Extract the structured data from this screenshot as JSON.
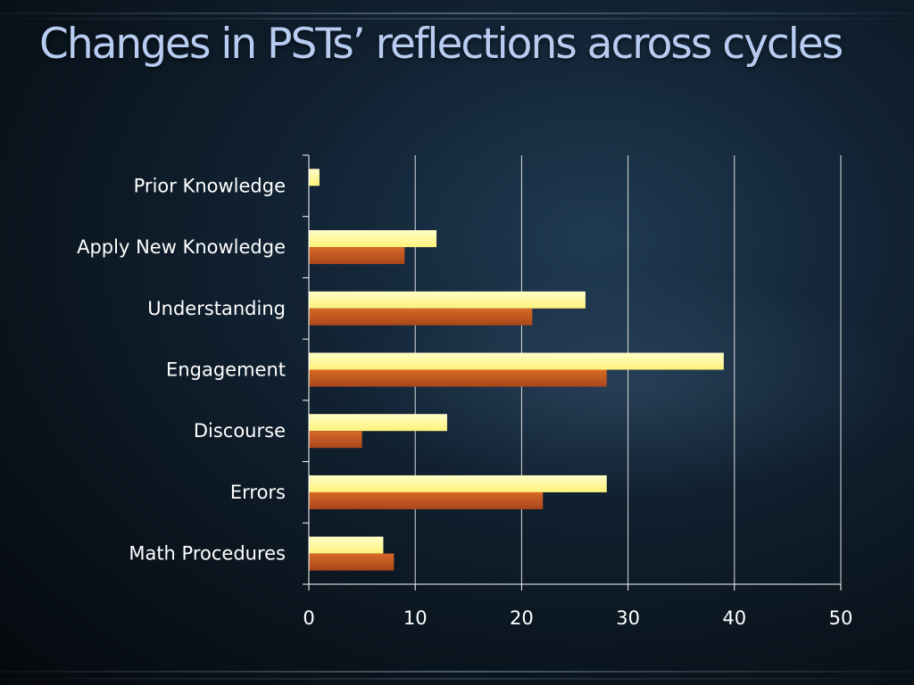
{
  "slide": {
    "title": "Changes in PSTs’ reflections across cycles"
  },
  "chart_data": {
    "type": "bar",
    "orientation": "horizontal",
    "categories": [
      "Prior Knowledge",
      "Apply New Knowledge",
      "Understanding",
      "Engagement",
      "Discourse",
      "Errors",
      "Math Procedures"
    ],
    "series": [
      {
        "values": [
          1,
          12,
          26,
          39,
          13,
          28,
          7
        ],
        "color": "#ffff99"
      },
      {
        "values": [
          0,
          9,
          21,
          28,
          5,
          22,
          8
        ],
        "color": "#c55a1e"
      }
    ],
    "xlim": [
      0,
      50
    ],
    "xticks": [
      0,
      10,
      20,
      30,
      40,
      50
    ],
    "grid": true,
    "legend": "none"
  }
}
